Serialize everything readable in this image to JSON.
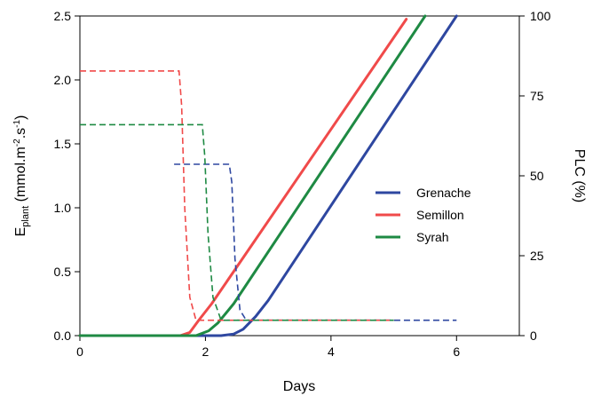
{
  "chart_data": {
    "type": "line",
    "xlabel": "Days",
    "ylabel_left": {
      "main": "E",
      "sub": "plant",
      "unit_pre": " (mmol.m",
      "sup1": "-2",
      "unit_mid": ".s",
      "sup2": "-1",
      "unit_post": ")"
    },
    "ylabel_right": "PLC (%)",
    "xlim": [
      0,
      7
    ],
    "ylim_left": [
      0,
      2.5
    ],
    "ylim_right": [
      0,
      100
    ],
    "x_ticks": [
      "0",
      "2",
      "4",
      "6"
    ],
    "x_tick_values": [
      0,
      2,
      4,
      6
    ],
    "y_left_ticks": [
      "0.0",
      "0.5",
      "1.0",
      "1.5",
      "2.0",
      "2.5"
    ],
    "y_left_tick_values": [
      0,
      0.5,
      1.0,
      1.5,
      2.0,
      2.5
    ],
    "y_right_ticks": [
      "0",
      "25",
      "50",
      "75",
      "100"
    ],
    "y_right_tick_values": [
      0,
      25,
      50,
      75,
      100
    ],
    "legend_position": "right",
    "series": [
      {
        "name": "Grenache",
        "color": "#2e47a0",
        "plc_percent": {
          "x": [
            0,
            2.25,
            2.45,
            2.6,
            2.8,
            3.0,
            6.0
          ],
          "y": [
            0,
            0,
            0.5,
            2,
            6,
            11,
            100
          ]
        },
        "e_plant_dashed": {
          "x": [
            1.5,
            2.38,
            2.42,
            2.47,
            2.55,
            2.65,
            6.0
          ],
          "y": [
            1.34,
            1.34,
            1.2,
            0.6,
            0.2,
            0.12,
            0.12
          ]
        }
      },
      {
        "name": "Semillon",
        "color": "#f04a4a",
        "plc_percent": {
          "x": [
            0,
            1.6,
            1.75,
            1.9,
            2.1,
            5.2
          ],
          "y": [
            0,
            0,
            1,
            5,
            10,
            99
          ]
        },
        "e_plant_dashed": {
          "x": [
            0,
            1.58,
            1.62,
            1.67,
            1.75,
            1.85,
            5.0
          ],
          "y": [
            2.07,
            2.07,
            1.8,
            1.0,
            0.3,
            0.12,
            0.12
          ]
        }
      },
      {
        "name": "Syrah",
        "color": "#1e8a43",
        "plc_percent": {
          "x": [
            0,
            1.85,
            2.05,
            2.2,
            2.45,
            5.5
          ],
          "y": [
            0,
            0,
            1.5,
            4,
            10,
            100
          ]
        },
        "e_plant_dashed": {
          "x": [
            0,
            1.95,
            1.99,
            2.04,
            2.12,
            2.25,
            5.0
          ],
          "y": [
            1.65,
            1.65,
            1.4,
            0.8,
            0.3,
            0.12,
            0.12
          ]
        }
      }
    ]
  }
}
